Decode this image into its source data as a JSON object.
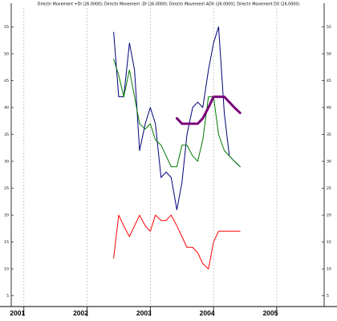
{
  "chart_data": {
    "type": "line",
    "title": "Directn Movement +DI (26.0000); Directn Movement -DI (26.0000); Directn Movement ADX (26.0000); Directn Movement DX (26.0000)",
    "x_ticks": [
      "2001",
      "2002",
      "2003",
      "2004",
      "2005"
    ],
    "xlim": [
      2000.8,
      2005.75
    ],
    "ylim": [
      3,
      58.5
    ],
    "y_ticks": [
      "5",
      "10",
      "15",
      "20",
      "25",
      "30",
      "35",
      "40",
      "45",
      "50",
      "55"
    ],
    "y_tick_values": [
      5,
      10,
      15,
      20,
      25,
      30,
      35,
      40,
      45,
      50,
      55
    ],
    "grid": true,
    "series": [
      {
        "color": "#00007a",
        "width": 1,
        "x": [
          2002.42,
          2002.5,
          2002.58,
          2002.67,
          2002.75,
          2002.83,
          2002.92,
          2003.0,
          2003.08,
          2003.17,
          2003.25,
          2003.33,
          2003.42,
          2003.5,
          2003.58,
          2003.67,
          2003.75,
          2003.83,
          2003.92,
          2004.0,
          2004.08,
          2004.17,
          2004.25,
          2004.33,
          2004.42
        ],
        "values": [
          54,
          42,
          42,
          52,
          47,
          32,
          37,
          40,
          37,
          27,
          28,
          27,
          21,
          26,
          35,
          40,
          41,
          40,
          47,
          52,
          55,
          39,
          31,
          30,
          29
        ]
      },
      {
        "color": "#007a00",
        "width": 1,
        "x": [
          2002.42,
          2002.5,
          2002.58,
          2002.67,
          2002.75,
          2002.83,
          2002.92,
          2003.0,
          2003.08,
          2003.17,
          2003.25,
          2003.33,
          2003.42,
          2003.5,
          2003.58,
          2003.67,
          2003.75,
          2003.83,
          2003.92,
          2004.0,
          2004.08,
          2004.17,
          2004.25,
          2004.33,
          2004.42
        ],
        "values": [
          49,
          46,
          42,
          47,
          42,
          37,
          36,
          37,
          34,
          33,
          31,
          29,
          29,
          33,
          33,
          31,
          30,
          34,
          42,
          42,
          35,
          32,
          31,
          30,
          29
        ]
      },
      {
        "color": "#7a007a",
        "width": 3,
        "x": [
          2003.42,
          2003.5,
          2003.58,
          2003.67,
          2003.75,
          2003.83,
          2003.92,
          2004.0,
          2004.08,
          2004.17,
          2004.25,
          2004.33,
          2004.42
        ],
        "values": [
          38,
          37,
          37,
          37,
          37,
          38,
          40,
          42,
          42,
          42,
          41,
          40,
          39
        ]
      },
      {
        "color": "#ff0000",
        "width": 1,
        "x": [
          2002.42,
          2002.5,
          2002.58,
          2002.67,
          2002.75,
          2002.83,
          2002.92,
          2003.0,
          2003.08,
          2003.17,
          2003.25,
          2003.33,
          2003.42,
          2003.5,
          2003.58,
          2003.67,
          2003.75,
          2003.83,
          2003.92,
          2004.0,
          2004.08,
          2004.17,
          2004.25,
          2004.33,
          2004.42
        ],
        "values": [
          12,
          20,
          18,
          16,
          18,
          20,
          18,
          17,
          20,
          19,
          19,
          20,
          18,
          16,
          14,
          14,
          13,
          11,
          10,
          15,
          17,
          17,
          17,
          17,
          17
        ]
      }
    ]
  }
}
